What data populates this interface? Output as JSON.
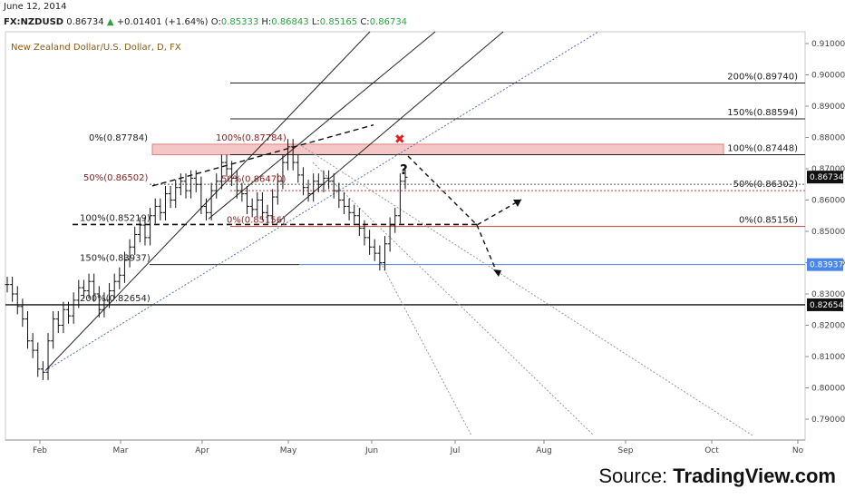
{
  "header": {
    "date": "June 12, 2014",
    "symbol": "FX:NZDUSD",
    "price": "0.86734",
    "change": "+0.01401 (+1.64%)",
    "o_label": "O:",
    "o": "0.85333",
    "h_label": "H:",
    "h": "0.86843",
    "l_label": "L:",
    "l": "0.85165",
    "c_label": "C:",
    "c": "0.86734"
  },
  "chart_title": "New Zealand Dollar/U.S. Dollar, D, FX",
  "source_prefix": "Source: ",
  "source_brand": "TradingView.com",
  "colors": {
    "up": "#2ea043",
    "blue_level": "#4a86e8",
    "red_zone": "#f4c6c6",
    "red_cross": "#e02020",
    "dark": "#111111"
  },
  "chart_data": {
    "type": "candlestick",
    "title": "New Zealand Dollar/U.S. Dollar, D, FX",
    "ylim": [
      0.785,
      0.9125
    ],
    "y_ticks": [
      "0.91000",
      "0.90000",
      "0.89000",
      "0.88000",
      "0.87000",
      "0.86000",
      "0.85000",
      "0.84000",
      "0.83000",
      "0.82000",
      "0.81000",
      "0.80000",
      "0.79000"
    ],
    "x_ticks": [
      "Feb",
      "Mar",
      "Apr",
      "May",
      "Jun",
      "Jul",
      "Aug",
      "Sep",
      "Oct",
      "No"
    ],
    "price_tags": [
      {
        "label": "0.86734",
        "value": 0.86734,
        "color": "#111111"
      },
      {
        "label": "0.83937",
        "value": 0.83937,
        "color": "#4a86e8"
      },
      {
        "label": "0.82654",
        "value": 0.82654,
        "color": "#111111"
      }
    ],
    "fib_levels": [
      {
        "label": "200%(0.89740)",
        "value": 0.8974
      },
      {
        "label": "150%(0.88594)",
        "value": 0.88594
      },
      {
        "label": "100%(0.87448)",
        "value": 0.87448
      },
      {
        "label": "50%(0.86302)",
        "value": 0.86302
      },
      {
        "label": "0%(0.85156)",
        "value": 0.85156
      },
      {
        "label": "0%(0.87784)",
        "value": 0.87784
      },
      {
        "label": "50%(0.86502)",
        "value": 0.86502
      },
      {
        "label": "100%(0.85219)",
        "value": 0.85219
      },
      {
        "label": "150%(0.83937)",
        "value": 0.83937
      },
      {
        "label": "200%(0.82654)",
        "value": 0.82654
      },
      {
        "label": "100%(0.87784)",
        "value": 0.87784
      },
      {
        "label": "50%(0.86470)",
        "value": 0.8647
      },
      {
        "label": "0%(0.85156)",
        "value": 0.85156
      }
    ],
    "annotations": [
      "?"
    ],
    "ohlc_points": [
      0.833,
      0.83,
      0.826,
      0.822,
      0.815,
      0.812,
      0.806,
      0.805,
      0.815,
      0.822,
      0.82,
      0.825,
      0.823,
      0.828,
      0.832,
      0.831,
      0.834,
      0.83,
      0.825,
      0.828,
      0.831,
      0.834,
      0.836,
      0.841,
      0.845,
      0.849,
      0.852,
      0.848,
      0.855,
      0.858,
      0.856,
      0.862,
      0.86,
      0.864,
      0.866,
      0.863,
      0.867,
      0.865,
      0.858,
      0.856,
      0.863,
      0.866,
      0.872,
      0.87,
      0.867,
      0.863,
      0.862,
      0.858,
      0.857,
      0.86,
      0.856,
      0.855,
      0.861,
      0.866,
      0.872,
      0.877,
      0.872,
      0.868,
      0.864,
      0.862,
      0.866,
      0.865,
      0.867,
      0.866,
      0.863,
      0.86,
      0.858,
      0.856,
      0.855,
      0.851,
      0.848,
      0.845,
      0.843,
      0.84,
      0.846,
      0.852,
      0.855,
      0.866,
      0.8673
    ]
  }
}
